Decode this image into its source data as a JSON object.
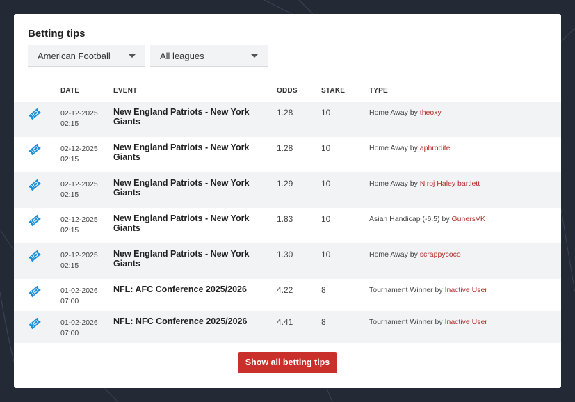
{
  "card": {
    "title": "Betting tips",
    "filters": {
      "sport": "American Football",
      "league": "All leagues"
    }
  },
  "table": {
    "headers": {
      "date": "DATE",
      "event": "EVENT",
      "odds": "ODDS",
      "stake": "STAKE",
      "type": "TYPE"
    },
    "rows": [
      {
        "date": "02-12-2025",
        "time": "02:15",
        "event": "New England Patriots - New York Giants",
        "odds": "1.28",
        "stake": "10",
        "type": "Home Away",
        "by": "by",
        "user": "theoxy"
      },
      {
        "date": "02-12-2025",
        "time": "02:15",
        "event": "New England Patriots - New York Giants",
        "odds": "1.28",
        "stake": "10",
        "type": "Home Away",
        "by": "by",
        "user": "aphrodite"
      },
      {
        "date": "02-12-2025",
        "time": "02:15",
        "event": "New England Patriots - New York Giants",
        "odds": "1.29",
        "stake": "10",
        "type": "Home Away",
        "by": "by",
        "user": "Niroj Haley bartlett"
      },
      {
        "date": "02-12-2025",
        "time": "02:15",
        "event": "New England Patriots - New York Giants",
        "odds": "1.83",
        "stake": "10",
        "type": "Asian Handicap (-6.5)",
        "by": "by",
        "user": "GunersVK"
      },
      {
        "date": "02-12-2025",
        "time": "02:15",
        "event": "New England Patriots - New York Giants",
        "odds": "1.30",
        "stake": "10",
        "type": "Home Away",
        "by": "by",
        "user": "scrappycoco"
      },
      {
        "date": "01-02-2026",
        "time": "07:00",
        "event": "NFL: AFC Conference 2025/2026",
        "odds": "4.22",
        "stake": "8",
        "type": "Tournament Winner",
        "by": "by",
        "user": "Inactive User"
      },
      {
        "date": "01-02-2026",
        "time": "07:00",
        "event": "NFL: NFC Conference 2025/2026",
        "odds": "4.41",
        "stake": "8",
        "type": "Tournament Winner",
        "by": "by",
        "user": "Inactive User"
      }
    ]
  },
  "show_all_label": "Show all betting tips",
  "colors": {
    "accent": "#c9302c",
    "user_link": "#b5302a",
    "ticket_icon": "#1e8fd6",
    "background": "#232a36"
  },
  "icons": {
    "row": "ticket-icon",
    "dropdown": "chevron-down-icon"
  }
}
